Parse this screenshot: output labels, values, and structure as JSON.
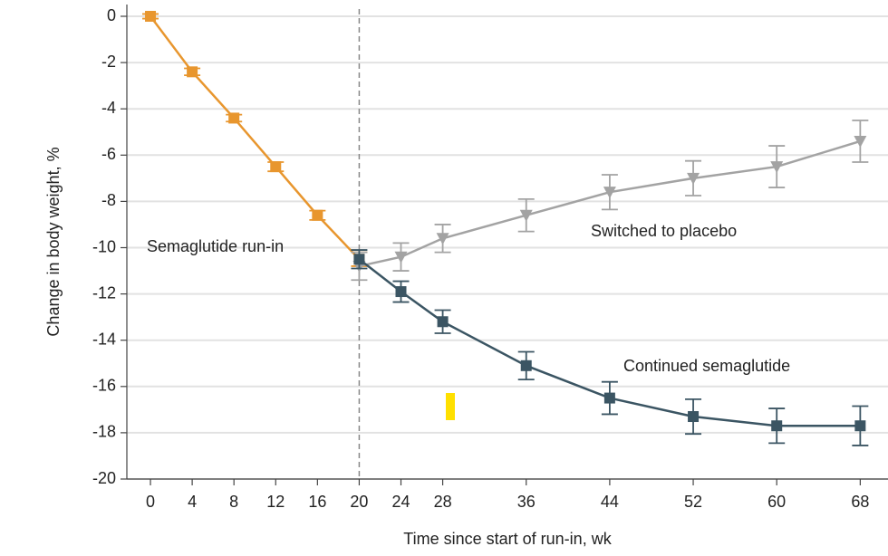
{
  "chart_data": {
    "type": "line",
    "x_label": "Time since start of run-in, wk",
    "y_label": "Change in body weight, %",
    "xlim": [
      -2.26,
      70.66
    ],
    "ylim": [
      -20,
      0
    ],
    "xticks": [
      0,
      4,
      8,
      12,
      16,
      20,
      24,
      28,
      36,
      44,
      52,
      60,
      68
    ],
    "yticks": [
      0,
      -2,
      -4,
      -6,
      -8,
      -10,
      -12,
      -14,
      -16,
      -18,
      -20
    ],
    "grid": true,
    "reference_line_x": 20,
    "series": [
      {
        "name": "Semaglutide run-in",
        "color": "#e8962e",
        "marker": "square",
        "x": [
          0,
          4,
          8,
          12,
          16,
          20
        ],
        "values": [
          0,
          -2.4,
          -4.4,
          -6.5,
          -8.6,
          -10.5
        ],
        "errors": [
          0.1,
          0.15,
          0.15,
          0.2,
          0.2,
          0.3
        ]
      },
      {
        "name": "Switched to placebo",
        "color": "#a3a3a3",
        "marker": "triangle-down",
        "x": [
          20,
          24,
          28,
          36,
          44,
          52,
          60,
          68
        ],
        "values": [
          -10.8,
          -10.4,
          -9.6,
          -8.6,
          -7.6,
          -7.0,
          -6.5,
          -5.4
        ],
        "errors": [
          0.6,
          0.6,
          0.6,
          0.7,
          0.75,
          0.75,
          0.9,
          0.9
        ]
      },
      {
        "name": "Continued semaglutide",
        "color": "#3b5563",
        "marker": "square",
        "x": [
          20,
          24,
          28,
          36,
          44,
          52,
          60,
          68
        ],
        "values": [
          -10.5,
          -11.9,
          -13.2,
          -15.1,
          -16.5,
          -17.3,
          -17.7,
          -17.7
        ],
        "errors": [
          0.4,
          0.45,
          0.5,
          0.6,
          0.7,
          0.75,
          0.75,
          0.85
        ]
      }
    ]
  }
}
